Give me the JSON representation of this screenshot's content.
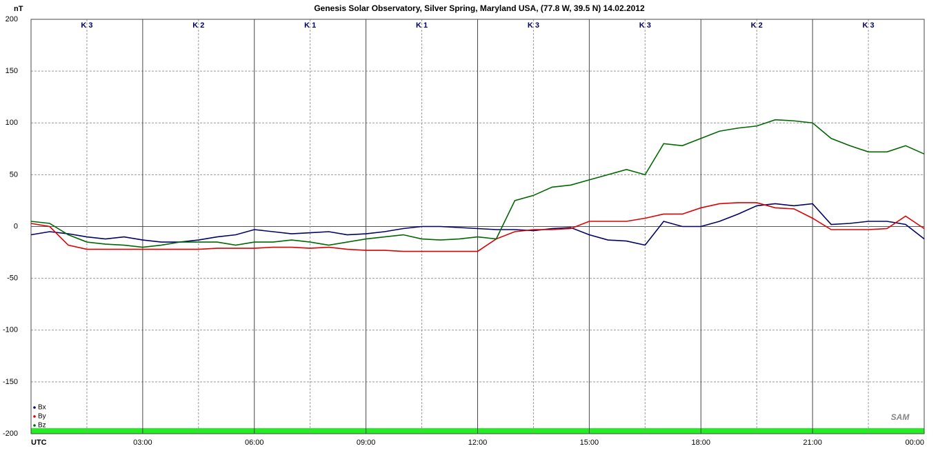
{
  "chart_data": {
    "type": "line",
    "title": "Genesis Solar Observatory, Silver Spring, Maryland USA, (77.8 W, 39.5 N)  14.02.2012",
    "y_label": "nT",
    "logo": "SAM",
    "k_labels": [
      "K 3",
      "K 2",
      "K 1",
      "K 1",
      "K 3",
      "K 3",
      "K 2",
      "K 3"
    ],
    "x": [
      0,
      0.5,
      1,
      1.5,
      2,
      2.5,
      3,
      3.5,
      4,
      4.5,
      5,
      5.5,
      6,
      6.5,
      7,
      7.5,
      8,
      8.5,
      9,
      9.5,
      10,
      10.5,
      11,
      11.5,
      12,
      12.5,
      13,
      13.5,
      14,
      14.5,
      15,
      15.5,
      16,
      16.5,
      17,
      17.5,
      18,
      18.5,
      19,
      19.5,
      20,
      20.5,
      21,
      21.5,
      22,
      22.5,
      23,
      23.5,
      24
    ],
    "series": [
      {
        "name": "Bx",
        "color": "#000066",
        "values": [
          -8,
          -5,
          -7,
          -10,
          -12,
          -10,
          -13,
          -15,
          -15,
          -13,
          -10,
          -8,
          -3,
          -5,
          -7,
          -6,
          -5,
          -8,
          -7,
          -5,
          -2,
          0,
          0,
          -1,
          -2,
          -3,
          -3,
          -4,
          -2,
          -1,
          -8,
          -13,
          -14,
          -18,
          5,
          0,
          0,
          5,
          12,
          20,
          22,
          20,
          22,
          2,
          3,
          5,
          5,
          2,
          -12
        ]
      },
      {
        "name": "By",
        "color": "#dd0000",
        "values": [
          3,
          0,
          -18,
          -22,
          -22,
          -22,
          -22,
          -22,
          -22,
          -22,
          -21,
          -21,
          -21,
          -20,
          -20,
          -21,
          -20,
          -22,
          -23,
          -23,
          -24,
          -24,
          -24,
          -24,
          -24,
          -12,
          -5,
          -3,
          -3,
          -2,
          5,
          5,
          5,
          8,
          12,
          12,
          18,
          22,
          23,
          23,
          18,
          17,
          8,
          -3,
          -3,
          -3,
          -2,
          10,
          -2
        ]
      },
      {
        "name": "Bz",
        "color": "#006600",
        "values": [
          5,
          3,
          -8,
          -15,
          -17,
          -18,
          -20,
          -18,
          -15,
          -15,
          -15,
          -18,
          -15,
          -15,
          -13,
          -15,
          -18,
          -15,
          -12,
          -10,
          -8,
          -12,
          -13,
          -12,
          -10,
          -12,
          25,
          30,
          38,
          40,
          45,
          50,
          55,
          50,
          80,
          78,
          85,
          92,
          95,
          97,
          103,
          102,
          100,
          85,
          78,
          72,
          72,
          78,
          70
        ]
      }
    ],
    "xlim": [
      0,
      24
    ],
    "xticks": [
      {
        "value": 0,
        "label": "UTC"
      },
      {
        "value": 3,
        "label": "03:00"
      },
      {
        "value": 6,
        "label": "06:00"
      },
      {
        "value": 9,
        "label": "09:00"
      },
      {
        "value": 12,
        "label": "12:00"
      },
      {
        "value": 15,
        "label": "15:00"
      },
      {
        "value": 18,
        "label": "18:00"
      },
      {
        "value": 21,
        "label": "21:00"
      },
      {
        "value": 24,
        "label": "00:00"
      }
    ],
    "ylim": [
      -200,
      200
    ],
    "yticks": [
      -200,
      -150,
      -100,
      -50,
      0,
      50,
      100,
      150,
      200
    ],
    "grid": true,
    "legend": "lower-left"
  }
}
